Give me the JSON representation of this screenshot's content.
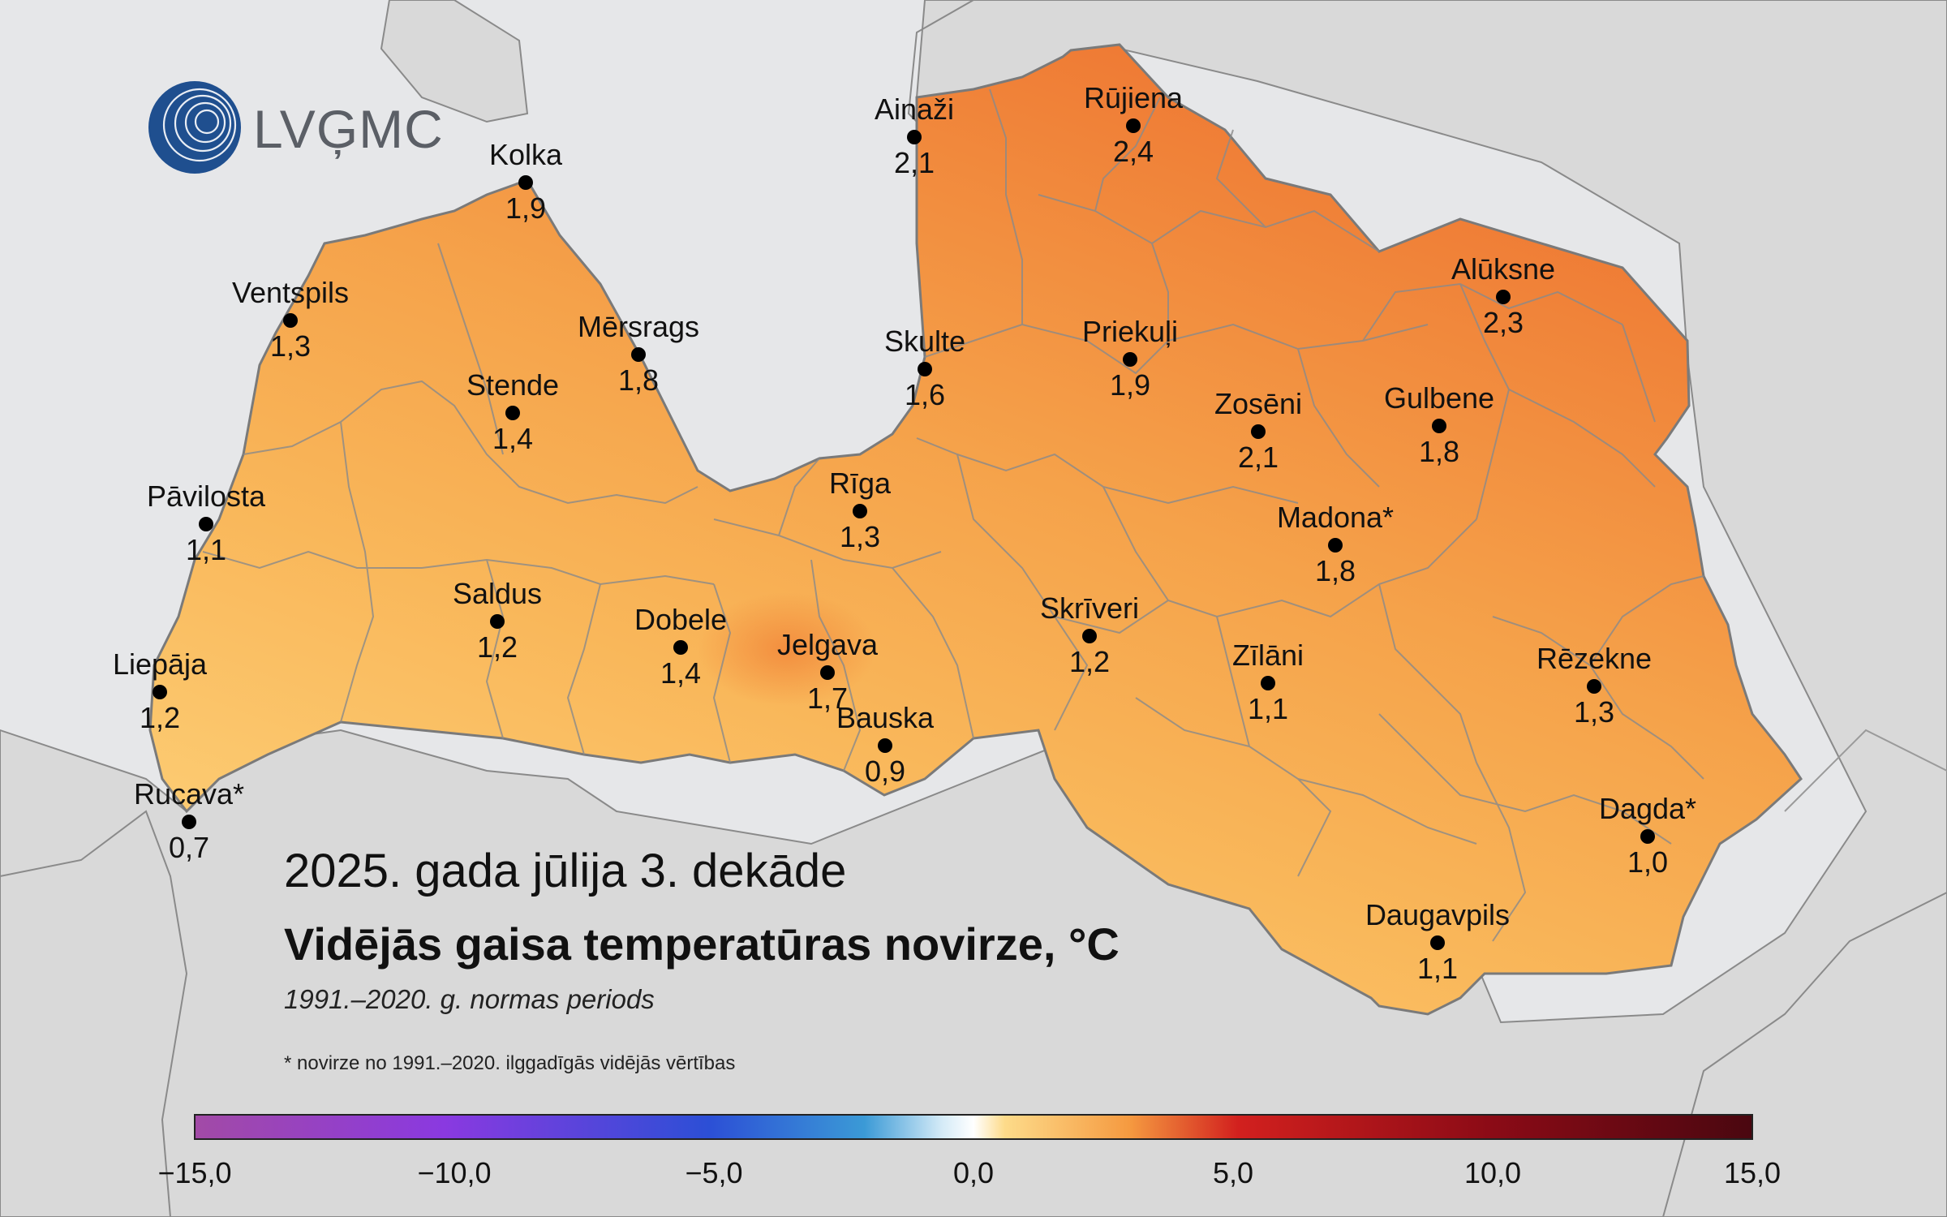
{
  "logo": {
    "text": "LVĢMC"
  },
  "title": {
    "period": "2025. gada jūlija 3. dekāde",
    "main": "Vidējās gaisa temperatūras novirze, °C",
    "norm": "1991.–2020. g. normas periods",
    "footnote": "* novirze no 1991.–2020. ilggadīgās vidējās vērtības"
  },
  "colors": {
    "sea": "#e6e7e9",
    "land_outside": "#d9d9d9",
    "country_border": "#7a7a7a",
    "latvia_low": "#fdd27a",
    "latvia_mid": "#f5a24a",
    "latvia_high": "#ee7b35"
  },
  "legend": {
    "ticks": [
      "−15,0",
      "−10,0",
      "−5,0",
      "0,0",
      "5,0",
      "10,0",
      "15,0"
    ],
    "colors": [
      "#9b3fa8",
      "#8a39e0",
      "#2c4fd6",
      "#2f8bd0",
      "#cfe6f5",
      "#ffffff",
      "#fdd27a",
      "#f08030",
      "#c81f1f",
      "#8c0b16",
      "#4a0710"
    ]
  },
  "stations": [
    {
      "name": "Ainaži",
      "value": "2,1"
    },
    {
      "name": "Rūjiena",
      "value": "2,4"
    },
    {
      "name": "Kolka",
      "value": "1,9"
    },
    {
      "name": "Ventspils",
      "value": "1,3"
    },
    {
      "name": "Mērsrags",
      "value": "1,8"
    },
    {
      "name": "Skulte",
      "value": "1,6"
    },
    {
      "name": "Priekuļi",
      "value": "1,9"
    },
    {
      "name": "Alūksne",
      "value": "2,3"
    },
    {
      "name": "Stende",
      "value": "1,4"
    },
    {
      "name": "Zosēni",
      "value": "2,1"
    },
    {
      "name": "Gulbene",
      "value": "1,8"
    },
    {
      "name": "Pāvilosta",
      "value": "1,1"
    },
    {
      "name": "Rīga",
      "value": "1,3"
    },
    {
      "name": "Madona*",
      "value": "1,8"
    },
    {
      "name": "Saldus",
      "value": "1,2"
    },
    {
      "name": "Dobele",
      "value": "1,4"
    },
    {
      "name": "Skrīveri",
      "value": "1,2"
    },
    {
      "name": "Jelgava",
      "value": "1,7"
    },
    {
      "name": "Liepāja",
      "value": "1,2"
    },
    {
      "name": "Zīlāni",
      "value": "1,1"
    },
    {
      "name": "Rēzekne",
      "value": "1,3"
    },
    {
      "name": "Bauska",
      "value": "0,9"
    },
    {
      "name": "Rucava*",
      "value": "0,7"
    },
    {
      "name": "Dagda*",
      "value": "1,0"
    },
    {
      "name": "Daugavpils",
      "value": "1,1"
    }
  ]
}
